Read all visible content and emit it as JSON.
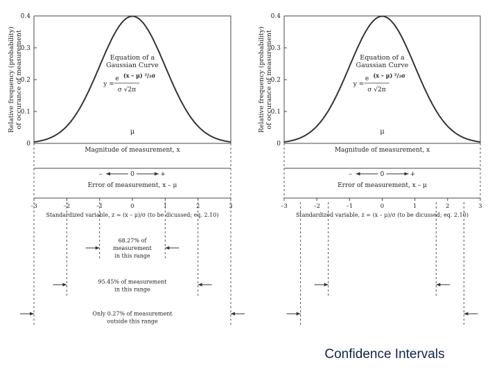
{
  "slide": {
    "title": "Confidence Intervals"
  },
  "chart_data": [
    {
      "type": "line",
      "title": "",
      "xlabel": "Magnitude of measurement, x",
      "ylabel": [
        "Relative frequency (probability)",
        "of occurance of measurement"
      ],
      "ylim": [
        0,
        0.4
      ],
      "xlim": [
        -3,
        3
      ],
      "yticks": [
        "0",
        "0.1",
        "0.2",
        "0.3",
        "0.4"
      ],
      "x": [
        -3,
        -2.5,
        -2,
        -1.5,
        -1,
        -0.5,
        0,
        0.5,
        1,
        1.5,
        2,
        2.5,
        3
      ],
      "series": [
        {
          "values": [
            0.0044,
            0.0175,
            0.054,
            0.1295,
            0.242,
            0.352,
            0.399,
            0.352,
            0.242,
            0.1295,
            0.054,
            0.0175,
            0.0044
          ]
        }
      ],
      "mu_label": "μ",
      "equation": {
        "heading": [
          "Equation of a",
          "Gaussian Curve"
        ],
        "lhs": "y =",
        "numerator": "e",
        "exponent": "(x – μ) ²/₂σ",
        "denominator": "σ √2π"
      },
      "error_axis": {
        "label": "Error of measurement, x – μ",
        "minus": "–",
        "zero": "0",
        "plus": "+"
      },
      "standardized_axis": {
        "label": "Standardized variable, z = (x – μ)/σ (to be dicussed; eq. 2.10)",
        "ticks": [
          "–3",
          "–2",
          "–1",
          "0",
          "1",
          "2",
          "3"
        ]
      },
      "ranges": [
        {
          "z": 1,
          "text": [
            "68.27% of",
            "measurement",
            "in this range"
          ]
        },
        {
          "z": 2,
          "text": [
            "95.45% of measurement",
            "in this range"
          ]
        },
        {
          "z": 3,
          "text": [
            "Only 0.27% of measurement",
            "outside this range"
          ]
        }
      ]
    },
    {
      "type": "line",
      "title": "",
      "xlabel": "Magnitude of measurement, x",
      "ylabel": [
        "Relative frequency (probability)",
        "of occurance of measurement"
      ],
      "ylim": [
        0,
        0.4
      ],
      "xlim": [
        -3,
        3
      ],
      "yticks": [
        "0",
        "0.1",
        "0.2",
        "0.3",
        "0.4"
      ],
      "x": [
        -3,
        -2.5,
        -2,
        -1.5,
        -1,
        -0.5,
        0,
        0.5,
        1,
        1.5,
        2,
        2.5,
        3
      ],
      "series": [
        {
          "values": [
            0.0044,
            0.0175,
            0.054,
            0.1295,
            0.242,
            0.352,
            0.399,
            0.352,
            0.242,
            0.1295,
            0.054,
            0.0175,
            0.0044
          ]
        }
      ],
      "mu_label": "μ",
      "equation": {
        "heading": [
          "Equation of a",
          "Gaussian Curve"
        ],
        "lhs": "y =",
        "numerator": "e",
        "exponent": "(x – μ) ²/₂σ",
        "denominator": "σ √2π"
      },
      "error_axis": {
        "label": "Error of measurement, x – μ",
        "minus": "–",
        "zero": "0",
        "plus": "+"
      },
      "standardized_axis": {
        "label": "Standardized variable, z = (x – μ)/σ (to be dicussed; eq. 2.10)",
        "ticks": [
          "–3",
          "–2",
          "–1",
          "0",
          "1",
          "2",
          "3"
        ]
      },
      "markers": [
        {
          "z": 1.65
        },
        {
          "z": 2.5
        }
      ]
    }
  ]
}
